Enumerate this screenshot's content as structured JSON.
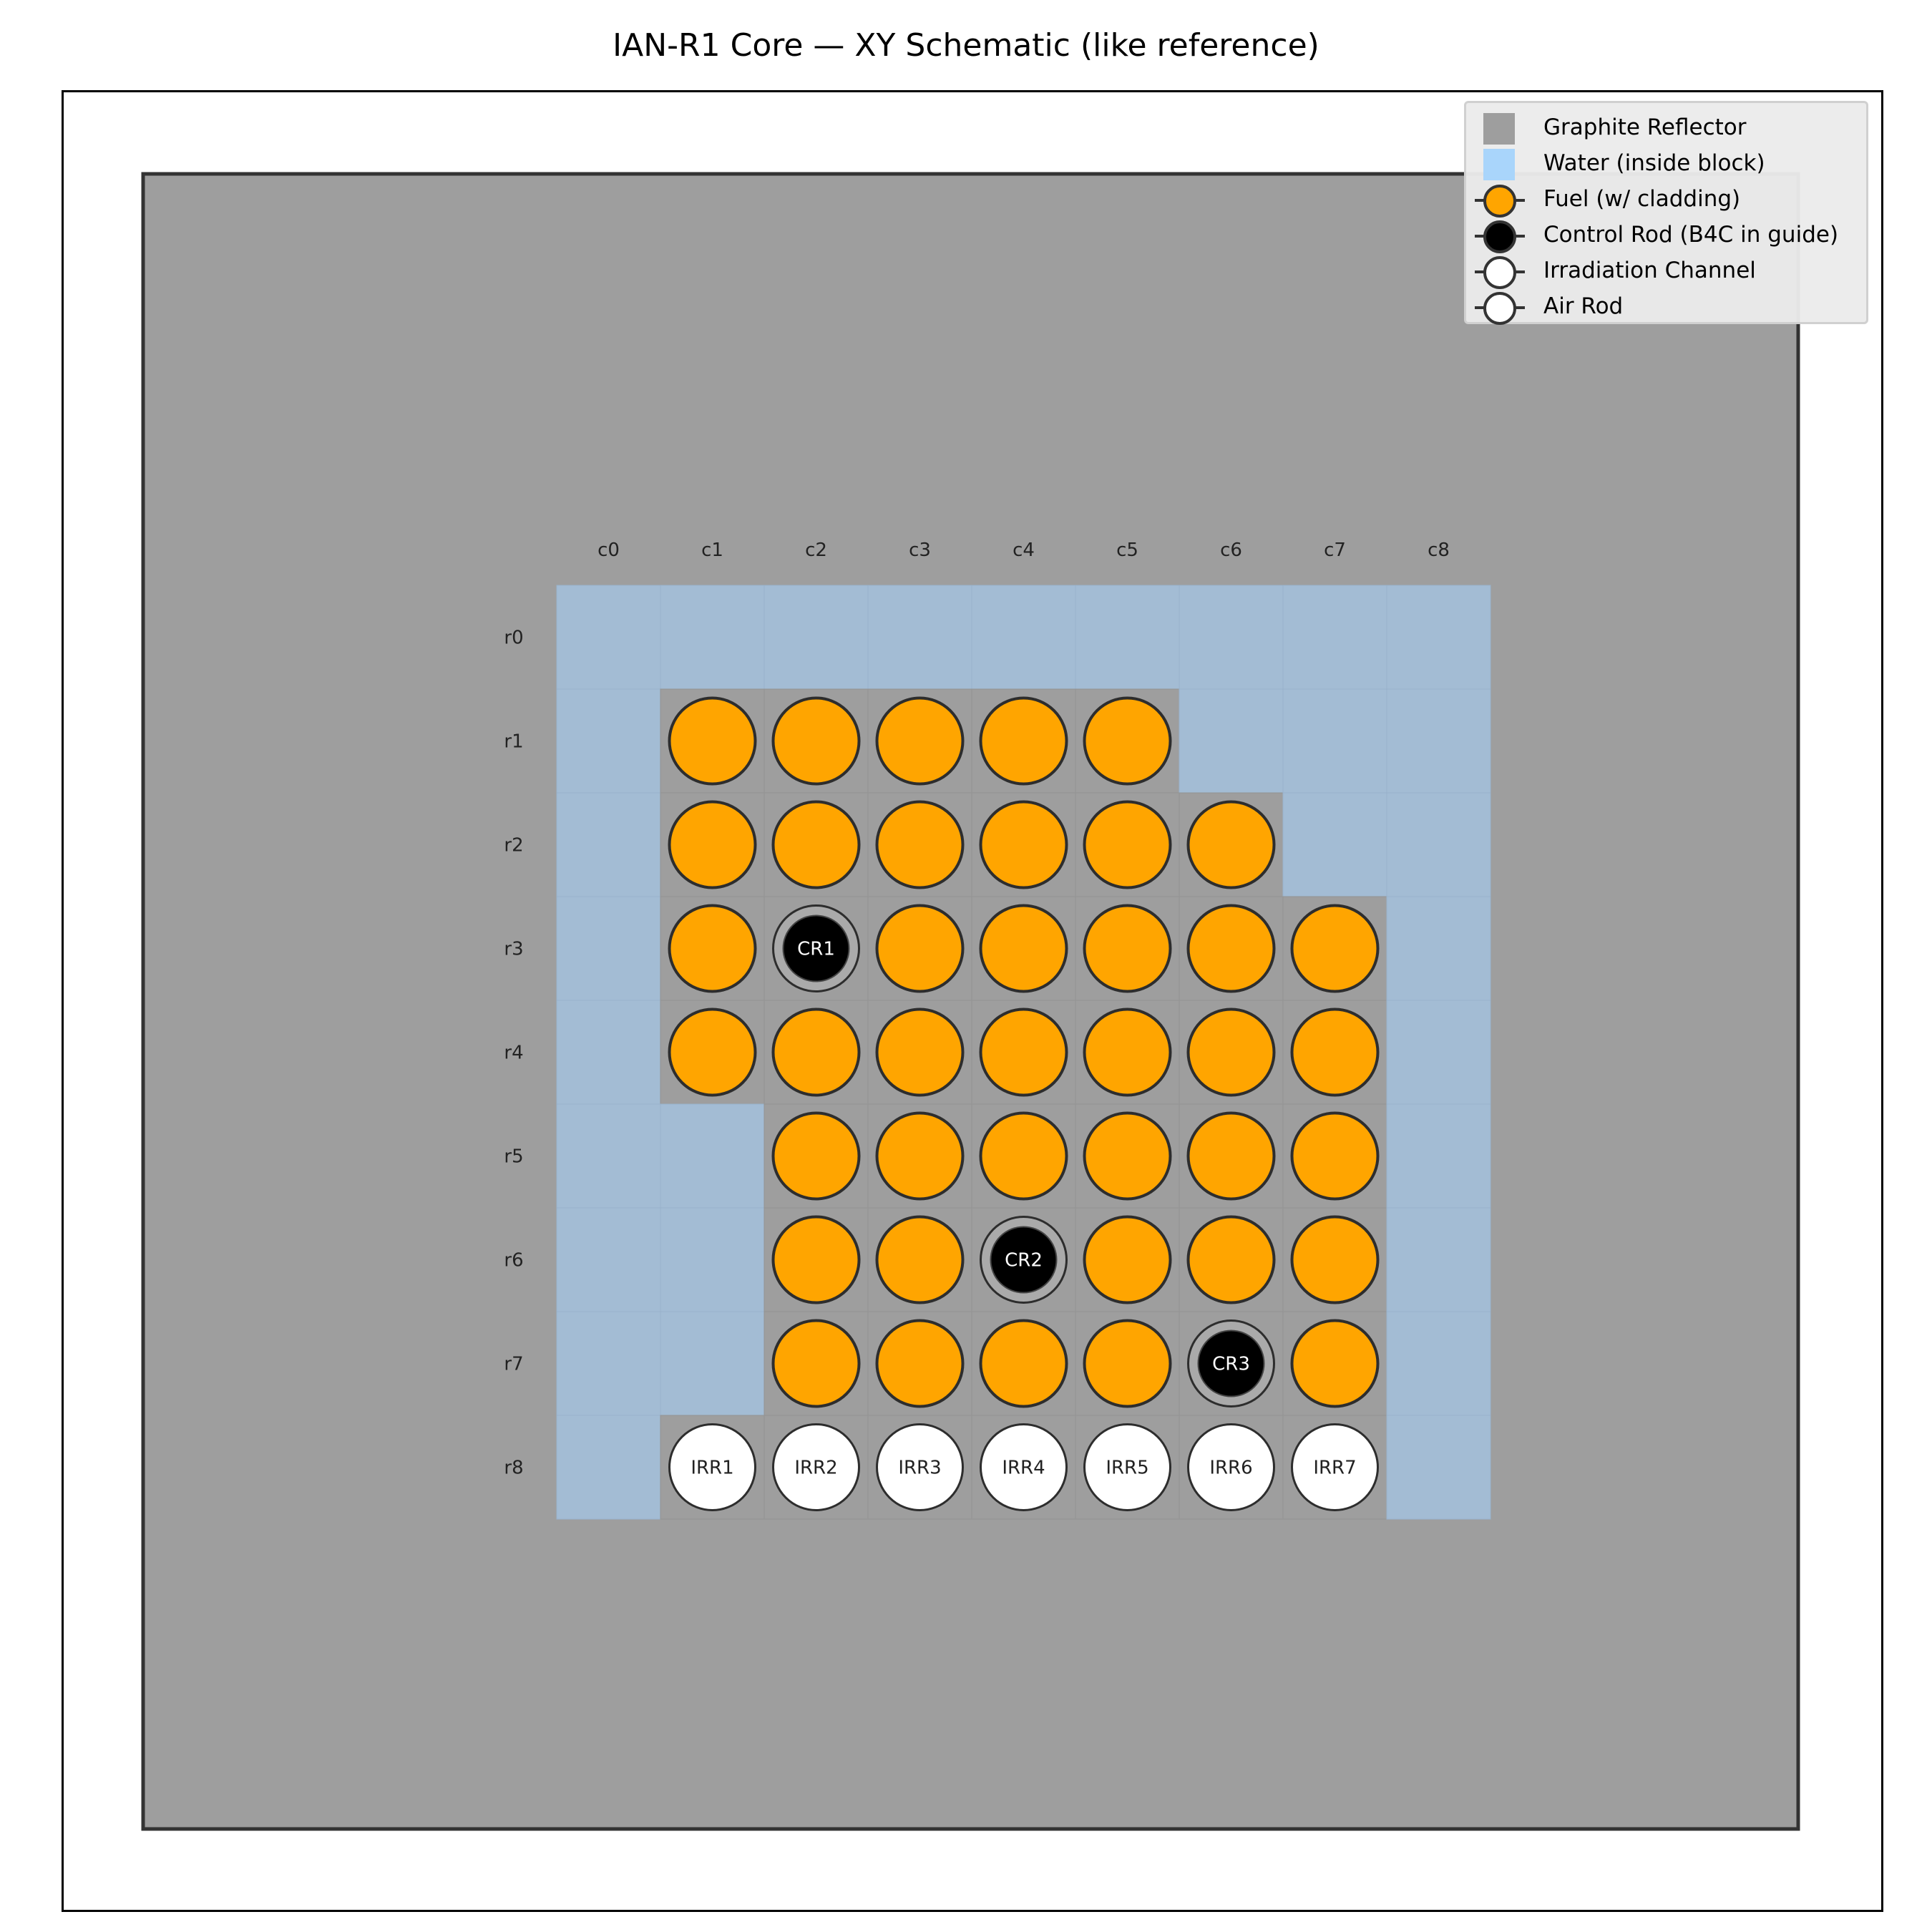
{
  "title": "IAN-R1 Core — XY Schematic (like reference)",
  "colors": {
    "graphite": "#9e9e9e",
    "water": "#a3bcd4",
    "water_legend": "#a9d5fb",
    "fuel": "#ffa500",
    "control_rod": "#000000",
    "guide": "#aaaaaa",
    "irradiation": "#ffffff",
    "outline": "#2d2d2d"
  },
  "columns": [
    "c0",
    "c1",
    "c2",
    "c3",
    "c4",
    "c5",
    "c6",
    "c7",
    "c8"
  ],
  "rows": [
    "r0",
    "r1",
    "r2",
    "r3",
    "r4",
    "r5",
    "r6",
    "r7",
    "r8"
  ],
  "grid": [
    [
      "W",
      "W",
      "W",
      "W",
      "W",
      "W",
      "W",
      "W",
      "W"
    ],
    [
      "W",
      "F",
      "F",
      "F",
      "F",
      "F",
      "W",
      "W",
      "W"
    ],
    [
      "W",
      "F",
      "F",
      "F",
      "F",
      "F",
      "F",
      "W",
      "W"
    ],
    [
      "W",
      "F",
      "C",
      "F",
      "F",
      "F",
      "F",
      "F",
      "W"
    ],
    [
      "W",
      "F",
      "F",
      "F",
      "F",
      "F",
      "F",
      "F",
      "W"
    ],
    [
      "W",
      "W",
      "F",
      "F",
      "F",
      "F",
      "F",
      "F",
      "W"
    ],
    [
      "W",
      "W",
      "F",
      "F",
      "C",
      "F",
      "F",
      "F",
      "W"
    ],
    [
      "W",
      "W",
      "F",
      "F",
      "F",
      "F",
      "C",
      "F",
      "W"
    ],
    [
      "W",
      "I",
      "I",
      "I",
      "I",
      "I",
      "I",
      "I",
      "W"
    ]
  ],
  "control_rods": [
    {
      "label": "CR1",
      "row": 3,
      "col": 2
    },
    {
      "label": "CR2",
      "row": 6,
      "col": 4
    },
    {
      "label": "CR3",
      "row": 7,
      "col": 6
    }
  ],
  "irradiation_channels": [
    {
      "label": "IRR1",
      "row": 8,
      "col": 1
    },
    {
      "label": "IRR2",
      "row": 8,
      "col": 2
    },
    {
      "label": "IRR3",
      "row": 8,
      "col": 3
    },
    {
      "label": "IRR4",
      "row": 8,
      "col": 4
    },
    {
      "label": "IRR5",
      "row": 8,
      "col": 5
    },
    {
      "label": "IRR6",
      "row": 8,
      "col": 6
    },
    {
      "label": "IRR7",
      "row": 8,
      "col": 7
    }
  ],
  "legend": [
    {
      "label": "Graphite Reflector",
      "kind": "square",
      "color": "#9e9e9e"
    },
    {
      "label": "Water (inside block)",
      "kind": "square",
      "color": "#a9d5fb"
    },
    {
      "label": "Fuel (w/ cladding)",
      "kind": "marker",
      "color": "#ffa500"
    },
    {
      "label": "Control Rod (B4C in guide)",
      "kind": "marker",
      "color": "#000000"
    },
    {
      "label": "Irradiation Channel",
      "kind": "marker",
      "color": "#ffffff"
    },
    {
      "label": "Air Rod",
      "kind": "marker",
      "color": "#ffffff"
    }
  ]
}
